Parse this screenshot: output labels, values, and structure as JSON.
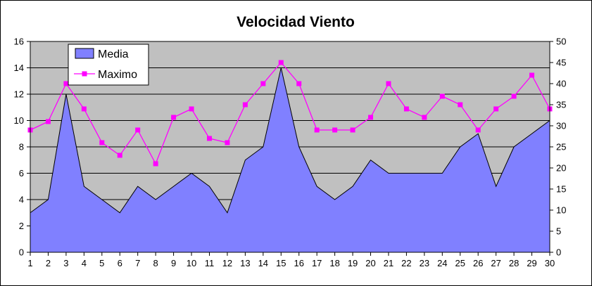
{
  "chart_data": {
    "type": "area",
    "title": "Velocidad Viento",
    "categories": [
      "1",
      "2",
      "3",
      "4",
      "5",
      "6",
      "7",
      "8",
      "9",
      "10",
      "11",
      "12",
      "13",
      "14",
      "15",
      "16",
      "17",
      "18",
      "19",
      "20",
      "21",
      "22",
      "23",
      "24",
      "25",
      "26",
      "27",
      "28",
      "29",
      "30"
    ],
    "series": [
      {
        "name": "Media",
        "type": "area",
        "axis": "left",
        "color": "#8080ff",
        "values": [
          3,
          4,
          12,
          5,
          4,
          3,
          5,
          4,
          5,
          6,
          5,
          3,
          7,
          8,
          14,
          8,
          5,
          4,
          5,
          7,
          6,
          6,
          6,
          6,
          8,
          9,
          5,
          8,
          9,
          10
        ]
      },
      {
        "name": "Maximo",
        "type": "line",
        "axis": "right",
        "color": "#ff00ff",
        "values": [
          29,
          31,
          40,
          34,
          26,
          23,
          29,
          21,
          32,
          34,
          27,
          26,
          35,
          40,
          45,
          40,
          29,
          29,
          29,
          32,
          40,
          34,
          32,
          37,
          35,
          29,
          34,
          37,
          42,
          34
        ]
      }
    ],
    "y_left": {
      "min": 0,
      "max": 16,
      "ticks": [
        0,
        2,
        4,
        6,
        8,
        10,
        12,
        14,
        16
      ]
    },
    "y_right": {
      "min": 0,
      "max": 50,
      "ticks": [
        0,
        5,
        10,
        15,
        20,
        25,
        30,
        35,
        40,
        45,
        50
      ]
    },
    "plot_background": "#c0c0c0",
    "grid": true,
    "legend": "top-left"
  }
}
